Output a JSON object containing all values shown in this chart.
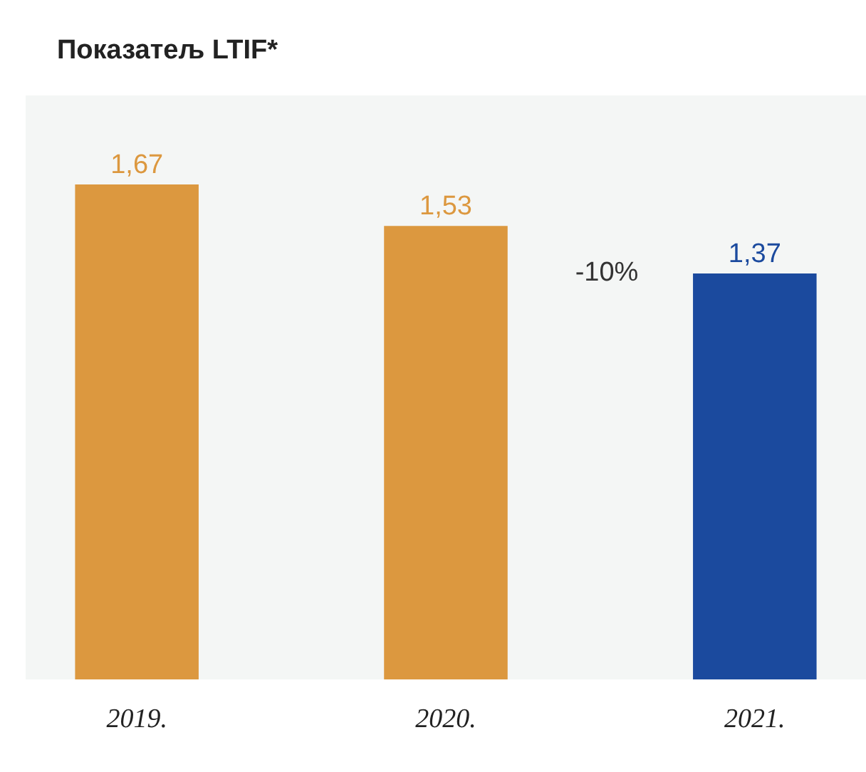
{
  "chart_data": {
    "type": "bar",
    "title": "Показатељ LTIF*",
    "categories": [
      "2019.",
      "2020.",
      "2021."
    ],
    "values": [
      1.67,
      1.53,
      1.37
    ],
    "colors": [
      "#dc983f",
      "#dc983f",
      "#1b4a9e"
    ],
    "value_labels": [
      "1,67",
      "1,53",
      "1,37"
    ],
    "annotations": [
      "-10%"
    ]
  }
}
